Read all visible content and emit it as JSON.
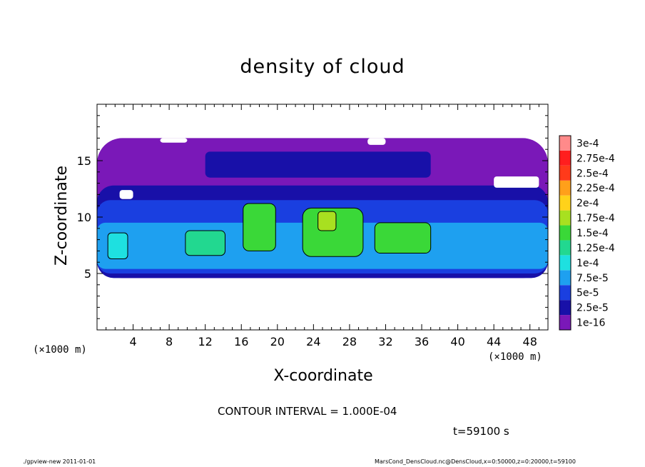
{
  "chart_data": {
    "type": "heatmap",
    "title": "density of cloud",
    "xlabel": "X-coordinate",
    "ylabel": "Z-coordinate",
    "x_unit": "(×1000 m)",
    "y_unit": "(×1000 m)",
    "xlim": [
      0,
      50
    ],
    "ylim": [
      0,
      20
    ],
    "x_ticks": [
      "4",
      "8",
      "12",
      "16",
      "20",
      "24",
      "28",
      "32",
      "36",
      "40",
      "44",
      "48"
    ],
    "y_ticks": [
      "5",
      "10",
      "15"
    ],
    "colorbar": {
      "labels": [
        "1e-16",
        "2.5e-5",
        "5e-5",
        "7.5e-5",
        "1e-4",
        "1.25e-4",
        "1.5e-4",
        "1.75e-4",
        "2e-4",
        "2.25e-4",
        "2.5e-4",
        "2.75e-4",
        "3e-4"
      ],
      "colors": [
        "#7a18b8",
        "#1810a8",
        "#1a3fe0",
        "#1ea0f0",
        "#1ee0e0",
        "#22d890",
        "#3ad838",
        "#a8e020",
        "#ffd21a",
        "#ffa01a",
        "#ff3a1a",
        "#ff1e1e",
        "#ff8a8a"
      ]
    },
    "regions": [
      {
        "level": 0,
        "x": [
          0,
          50
        ],
        "z": [
          4.6,
          17
        ]
      },
      {
        "level": 1,
        "x": [
          0,
          50
        ],
        "z": [
          4.6,
          12.8
        ]
      },
      {
        "level": 1,
        "x": [
          12,
          37
        ],
        "z": [
          13.5,
          15.8
        ]
      },
      {
        "level": 2,
        "x": [
          0,
          50
        ],
        "z": [
          5.0,
          11.5
        ]
      },
      {
        "level": 3,
        "x": [
          0,
          50
        ],
        "z": [
          5.4,
          9.5
        ]
      },
      {
        "level": 4,
        "x": [
          1.2,
          3.4
        ],
        "z": [
          6.3,
          8.6
        ]
      },
      {
        "level": 5,
        "x": [
          9.8,
          14.2
        ],
        "z": [
          6.6,
          8.8
        ]
      },
      {
        "level": 6,
        "x": [
          16.2,
          19.8
        ],
        "z": [
          7.0,
          11.2
        ]
      },
      {
        "level": 6,
        "x": [
          22.8,
          29.5
        ],
        "z": [
          6.5,
          10.8
        ]
      },
      {
        "level": 6,
        "x": [
          30.8,
          37.0
        ],
        "z": [
          6.8,
          9.5
        ]
      },
      {
        "level": 7,
        "x": [
          24.5,
          26.5
        ],
        "z": [
          8.8,
          10.5
        ]
      }
    ]
  },
  "contour_interval": "CONTOUR INTERVAL = 1.000E-04",
  "time": "t=59100 s",
  "footer_left": "./gpview-new   2011-01-01",
  "footer_right": "MarsCond_DensCloud.nc@DensCloud,x=0:50000,z=0:20000,t=59100"
}
